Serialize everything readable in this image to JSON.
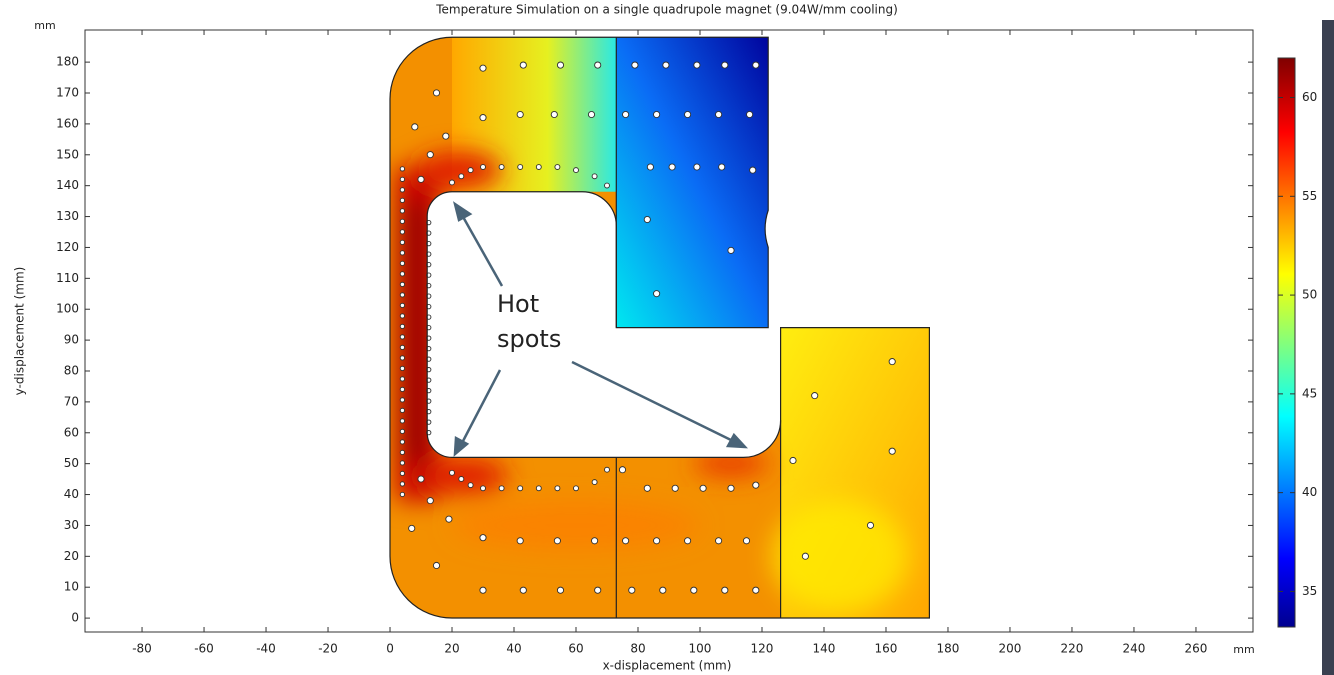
{
  "chart_data": {
    "type": "contour",
    "title": "Temperature Simulation on a single quadrupole magnet (9.04W/mm cooling)",
    "x_label": "x-displacement (mm)",
    "y_label": "y-displacement (mm)",
    "x_unit": "mm",
    "y_unit": "mm",
    "xlim": [
      -98.4,
      278.4
    ],
    "ylim": [
      -4.5,
      190.4
    ],
    "xticks": [
      -80,
      -60,
      -40,
      -20,
      0,
      20,
      40,
      60,
      80,
      100,
      120,
      140,
      160,
      180,
      200,
      220,
      240,
      260
    ],
    "yticks": [
      0,
      10,
      20,
      30,
      40,
      50,
      60,
      70,
      80,
      90,
      100,
      110,
      120,
      130,
      140,
      150,
      160,
      170,
      180
    ],
    "clim": [
      33.2,
      62
    ],
    "cticks": [
      35,
      40,
      45,
      50,
      55,
      60
    ],
    "annotation_lines": [
      "Hot",
      "spots"
    ]
  }
}
